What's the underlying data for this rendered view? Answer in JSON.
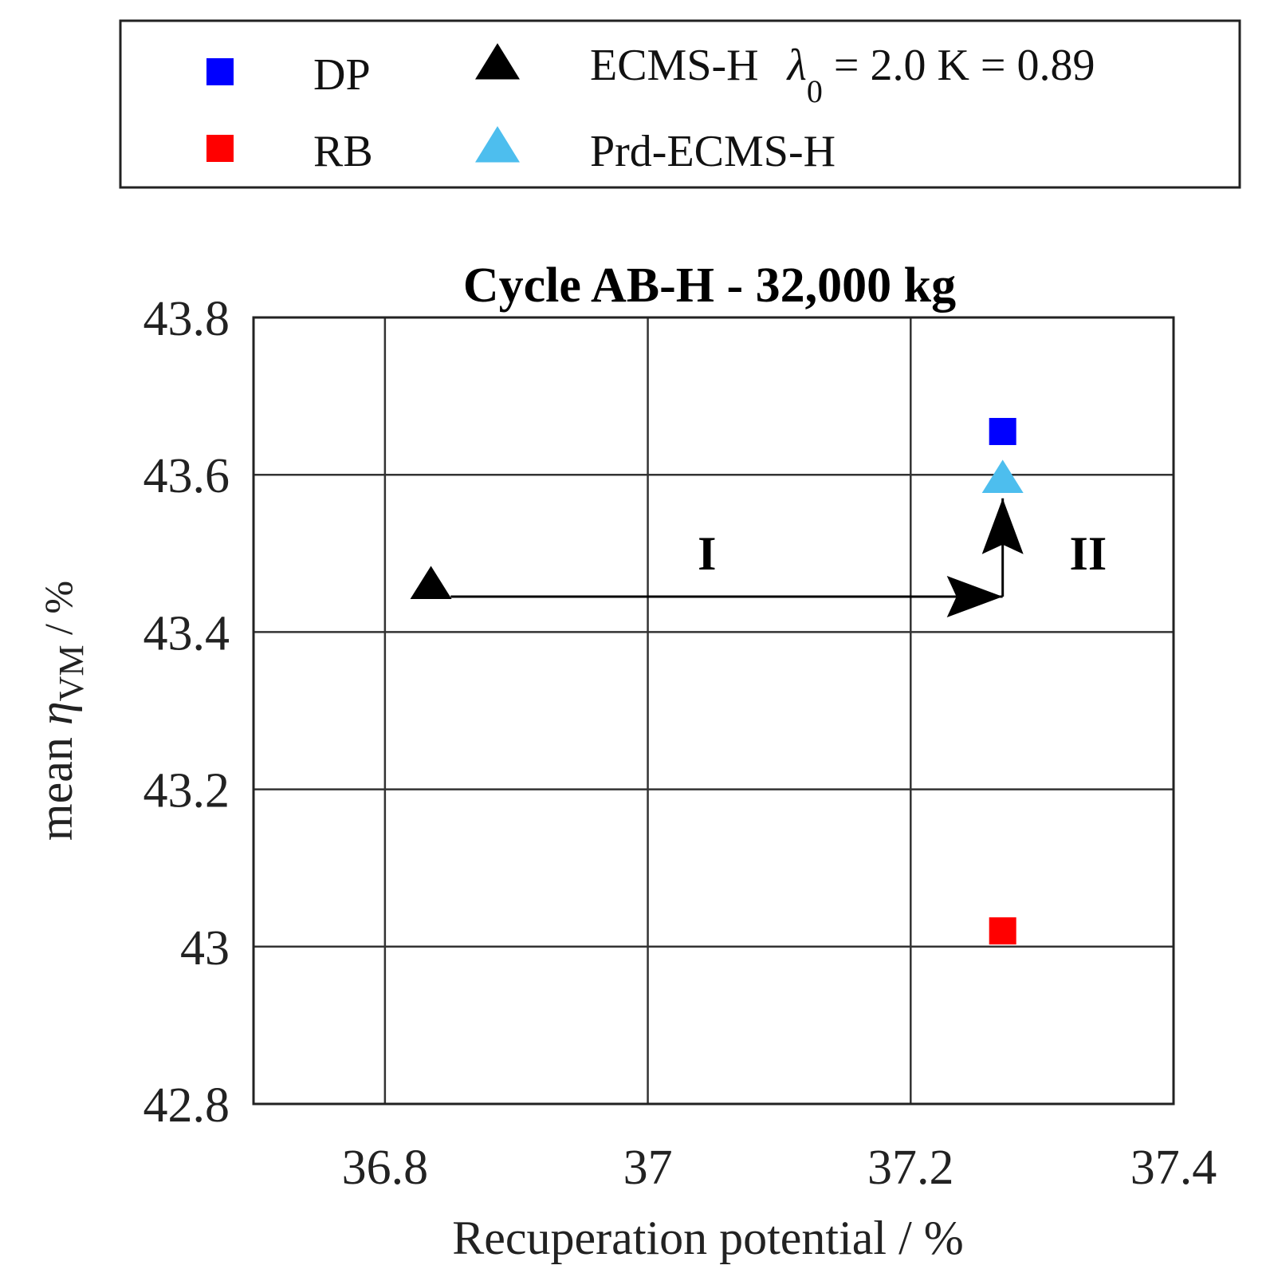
{
  "chart_data": {
    "type": "scatter",
    "title": "Cycle AB-H - 32,000 kg",
    "xlabel": "Recuperation potential / %",
    "ylabel": {
      "prefix": "mean ",
      "symbol": "η",
      "subscript": "VM",
      "suffix": " / %"
    },
    "xlim": [
      36.7,
      37.4
    ],
    "ylim": [
      42.8,
      43.8
    ],
    "grid": true,
    "x_ticks": [
      {
        "value": 36.8,
        "label": "36.8"
      },
      {
        "value": 37.0,
        "label": "37"
      },
      {
        "value": 37.2,
        "label": "37.2"
      },
      {
        "value": 37.4,
        "label": "37.4"
      }
    ],
    "y_ticks": [
      {
        "value": 42.8,
        "label": "42.8"
      },
      {
        "value": 43.0,
        "label": "43"
      },
      {
        "value": 43.2,
        "label": "43.2"
      },
      {
        "value": 43.4,
        "label": "43.4"
      },
      {
        "value": 43.6,
        "label": "43.6"
      },
      {
        "value": 43.8,
        "label": "43.8"
      }
    ],
    "series": [
      {
        "name": "DP",
        "marker": "square",
        "color": "#0000ff",
        "x": 37.27,
        "y": 43.655
      },
      {
        "name": "RB",
        "marker": "square",
        "color": "#ff0000",
        "x": 37.27,
        "y": 43.02
      },
      {
        "name": "ECMS-H",
        "legend_suffix": {
          "lambda": "λ",
          "lambda_sub": "0",
          "rest": " = 2.0  K = 0.89"
        },
        "marker": "triangle",
        "color": "#000000",
        "x": 36.835,
        "y": 43.46
      },
      {
        "name": "Prd-ECMS-H",
        "marker": "triangle",
        "color": "#4dbeee",
        "x": 37.27,
        "y": 43.595
      }
    ],
    "annotations": [
      {
        "label": "I",
        "from": [
          36.85,
          43.445
        ],
        "to": [
          37.27,
          43.445
        ],
        "label_at": [
          37.045,
          43.5
        ]
      },
      {
        "label": "II",
        "from": [
          37.27,
          43.445
        ],
        "to": [
          37.27,
          43.57
        ],
        "label_at": [
          37.335,
          43.5
        ]
      }
    ],
    "legend_position": "top"
  }
}
